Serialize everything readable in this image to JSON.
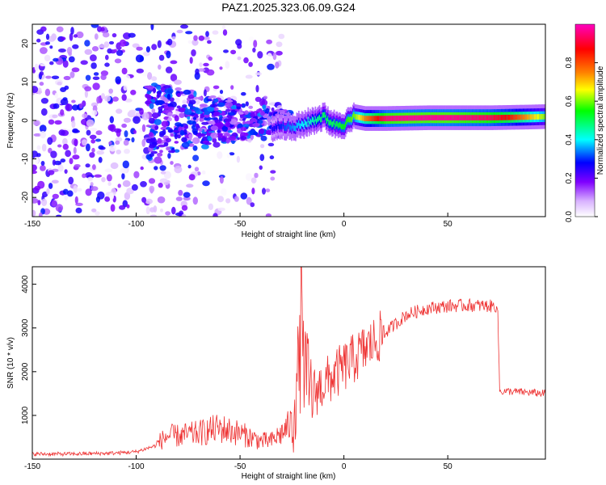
{
  "title": "PAZ1.2025.323.06.09.G24",
  "colorbar": {
    "label": "Normalized spectral amplitude",
    "ticks": [
      "0.0",
      "0.2",
      "0.4",
      "0.6",
      "0.8"
    ],
    "tick_values": [
      0.0,
      0.2,
      0.4,
      0.6,
      0.8
    ],
    "colors": [
      "#ffffff",
      "#d9b3ff",
      "#8000ff",
      "#0000ff",
      "#00ffff",
      "#00ff00",
      "#ffff00",
      "#ff8000",
      "#ff0000",
      "#ff00c0"
    ]
  },
  "chart_data": [
    {
      "type": "heatmap",
      "title": "",
      "xlabel": "Height of straight line (km)",
      "ylabel": "Frequency (Hz)",
      "xlim": [
        -150,
        97
      ],
      "ylim": [
        -25,
        25
      ],
      "x_ticks": [
        -150,
        -100,
        -50,
        0,
        50
      ],
      "x_tick_labels": [
        "-150",
        "-100",
        "-50",
        "0",
        "50"
      ],
      "y_ticks": [
        -20,
        -10,
        0,
        10,
        20
      ],
      "y_tick_labels": [
        "-20",
        "-10",
        "0",
        "10",
        "20"
      ],
      "ridge": {
        "x": [
          -35,
          -30,
          -25,
          -20,
          -15,
          -10,
          -5,
          0,
          5,
          10,
          15,
          20,
          30,
          40,
          50,
          60,
          70,
          80,
          90,
          97
        ],
        "frequency": [
          -2,
          -1,
          -2,
          -1,
          0,
          1,
          -1,
          -1,
          1,
          0.5,
          0.5,
          0.5,
          0.6,
          0.7,
          0.7,
          0.7,
          0.7,
          0.8,
          0.9,
          1.0
        ],
        "amplitude": [
          0.25,
          0.3,
          0.35,
          0.4,
          0.45,
          0.5,
          0.5,
          0.55,
          0.6,
          0.75,
          0.85,
          0.95,
          0.97,
          0.97,
          0.97,
          0.95,
          0.93,
          0.85,
          0.7,
          0.6
        ]
      },
      "noise_region": {
        "x_range": [
          -150,
          -30
        ],
        "frequency_range": [
          -25,
          25
        ],
        "amplitude_range": [
          0.0,
          0.3
        ]
      }
    },
    {
      "type": "line",
      "title": "",
      "xlabel": "Height of straight line (km)",
      "ylabel": "SNR (10 * v/v)",
      "xlim": [
        -150,
        97
      ],
      "ylim": [
        0,
        4400
      ],
      "x_ticks": [
        -150,
        -100,
        -50,
        0,
        50
      ],
      "x_tick_labels": [
        "-150",
        "-100",
        "-50",
        "0",
        "50"
      ],
      "y_ticks": [
        1000,
        2000,
        3000,
        4000
      ],
      "y_tick_labels": [
        "1000",
        "2000",
        "3000",
        "4000"
      ],
      "color": "#ee3333",
      "series": [
        {
          "x": [
            -150,
            -130,
            -110,
            -100,
            -90,
            -85,
            -80,
            -70,
            -60,
            -50,
            -40,
            -35,
            -30,
            -25,
            -22,
            -20,
            -18,
            -16,
            -15,
            -10,
            -5,
            0,
            5,
            10,
            20,
            30,
            40,
            50,
            60,
            70,
            74,
            75,
            80,
            90,
            97
          ],
          "values": [
            100,
            100,
            120,
            150,
            300,
            450,
            450,
            500,
            600,
            500,
            350,
            350,
            500,
            700,
            1800,
            2200,
            1600,
            1200,
            1500,
            1700,
            1900,
            2100,
            2300,
            2500,
            2900,
            3300,
            3450,
            3500,
            3520,
            3500,
            3500,
            1550,
            1550,
            1520,
            1500
          ]
        }
      ]
    }
  ]
}
